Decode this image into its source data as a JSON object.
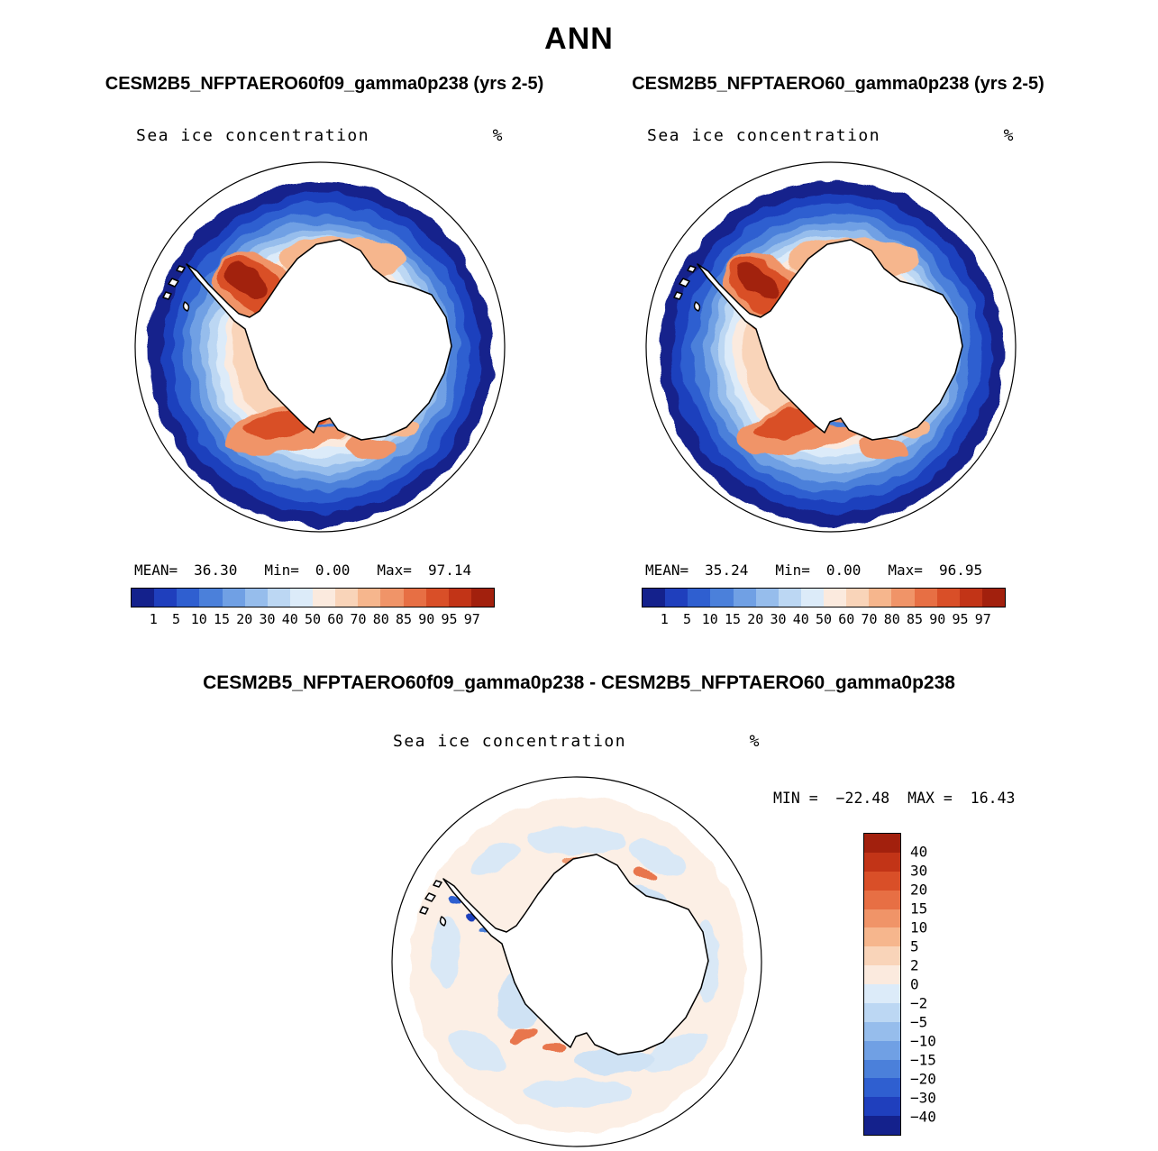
{
  "title": "ANN",
  "panels": [
    {
      "subtitle": "CESM2B5_NFPTAERO60f09_gamma0p238 (yrs 2-5)",
      "map_title": "Sea ice concentration",
      "unit": "%",
      "stats": {
        "mean_label": "MEAN=",
        "mean": "36.30",
        "min_label": "Min=",
        "min": "0.00",
        "max_label": "Max=",
        "max": "97.14"
      }
    },
    {
      "subtitle": "CESM2B5_NFPTAERO60_gamma0p238 (yrs 2-5)",
      "map_title": "Sea ice concentration",
      "unit": "%",
      "stats": {
        "mean_label": "MEAN=",
        "mean": "35.24",
        "min_label": "Min=",
        "min": "0.00",
        "max_label": "Max=",
        "max": "96.95"
      }
    }
  ],
  "diff": {
    "title": "CESM2B5_NFPTAERO60f09_gamma0p238 - CESM2B5_NFPTAERO60_gamma0p238",
    "map_title": "Sea ice concentration",
    "unit": "%",
    "min_label": "MIN =",
    "min": "−22.48",
    "max_label": "MAX =",
    "max": "16.43"
  },
  "colorbars": {
    "conc": {
      "colors": [
        "#14218c",
        "#1f3fbd",
        "#2f5fd0",
        "#4b80da",
        "#70a0e4",
        "#96bdec",
        "#bcd7f3",
        "#dcebf9",
        "#fbeade",
        "#f9d4b9",
        "#f6b68d",
        "#f09468",
        "#e76f44",
        "#d94f28",
        "#c23417",
        "#a2200d"
      ],
      "labels": [
        "1",
        "5",
        "10",
        "15",
        "20",
        "30",
        "40",
        "50",
        "60",
        "70",
        "80",
        "85",
        "90",
        "95",
        "97"
      ]
    },
    "diff": {
      "colors": [
        "#a2200d",
        "#c23417",
        "#d94f28",
        "#e76f44",
        "#f09468",
        "#f6b68d",
        "#f9d4b9",
        "#fbeade",
        "#dcebf9",
        "#bcd7f3",
        "#96bdec",
        "#70a0e4",
        "#4b80da",
        "#2f5fd0",
        "#1f3fbd",
        "#14218c"
      ],
      "labels": [
        "40",
        "30",
        "20",
        "15",
        "10",
        "5",
        "2",
        "0",
        "−2",
        "−5",
        "−10",
        "−15",
        "−20",
        "−30",
        "−40"
      ]
    }
  },
  "chart_data": [
    {
      "type": "heatmap",
      "subtype": "south-polar-contour-map",
      "title": "Sea ice concentration",
      "series_label": "CESM2B5_NFPTAERO60f09_gamma0p238",
      "period": "yrs 2-5",
      "units": "%",
      "mean": 36.3,
      "min": 0.0,
      "max": 97.14,
      "contour_levels": [
        1,
        5,
        10,
        15,
        20,
        30,
        40,
        50,
        60,
        70,
        80,
        85,
        90,
        95,
        97
      ],
      "legend_position": "bottom"
    },
    {
      "type": "heatmap",
      "subtype": "south-polar-contour-map",
      "title": "Sea ice concentration",
      "series_label": "CESM2B5_NFPTAERO60_gamma0p238",
      "period": "yrs 2-5",
      "units": "%",
      "mean": 35.24,
      "min": 0.0,
      "max": 96.95,
      "contour_levels": [
        1,
        5,
        10,
        15,
        20,
        30,
        40,
        50,
        60,
        70,
        80,
        85,
        90,
        95,
        97
      ],
      "legend_position": "bottom"
    },
    {
      "type": "heatmap",
      "subtype": "south-polar-contour-map-difference",
      "title": "Sea ice concentration",
      "series_label": "CESM2B5_NFPTAERO60f09_gamma0p238 - CESM2B5_NFPTAERO60_gamma0p238",
      "units": "%",
      "min": -22.48,
      "max": 16.43,
      "contour_levels": [
        40,
        30,
        20,
        15,
        10,
        5,
        2,
        0,
        -2,
        -5,
        -10,
        -15,
        -20,
        -30,
        -40
      ],
      "legend_position": "right"
    }
  ]
}
